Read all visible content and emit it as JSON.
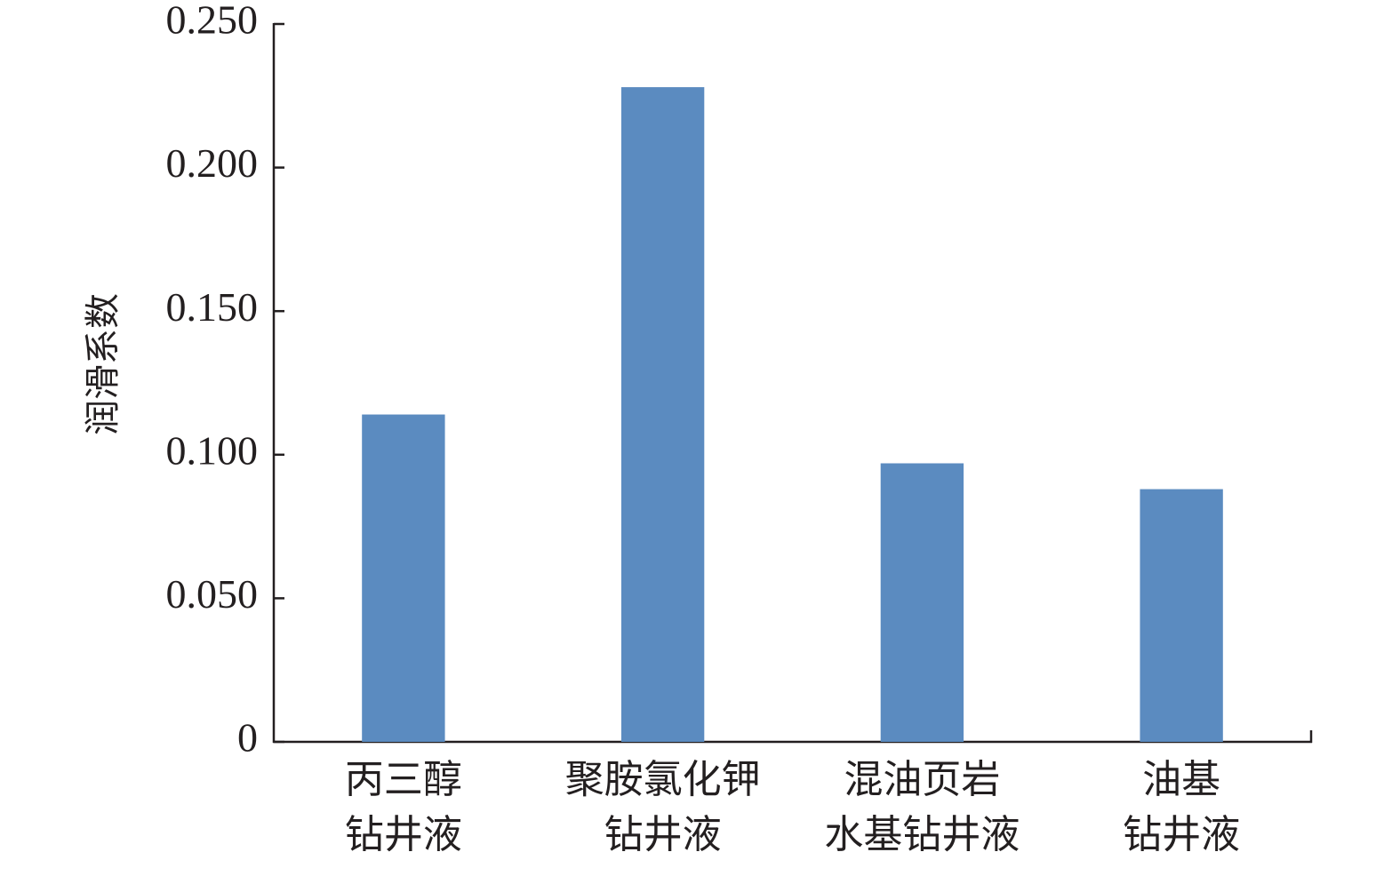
{
  "chart_data": {
    "type": "bar",
    "y_label": "润滑系数",
    "categories": [
      [
        "丙三醇",
        "钻井液"
      ],
      [
        "聚胺氯化钾",
        "钻井液"
      ],
      [
        "混油页岩",
        "水基钻井液"
      ],
      [
        "油基",
        "钻井液"
      ]
    ],
    "values": [
      0.114,
      0.228,
      0.097,
      0.088
    ],
    "color": "#5b8bc0",
    "ylim": [
      0,
      0.25
    ],
    "yticks": [
      0,
      {
        "value": 0.05,
        "label": "0.050"
      },
      {
        "value": 0.1,
        "label": "0.100"
      },
      {
        "value": 0.15,
        "label": "0.150"
      },
      {
        "value": 0.2,
        "label": "0.200"
      },
      {
        "value": 0.25,
        "label": "0.250"
      }
    ],
    "grid": false
  }
}
